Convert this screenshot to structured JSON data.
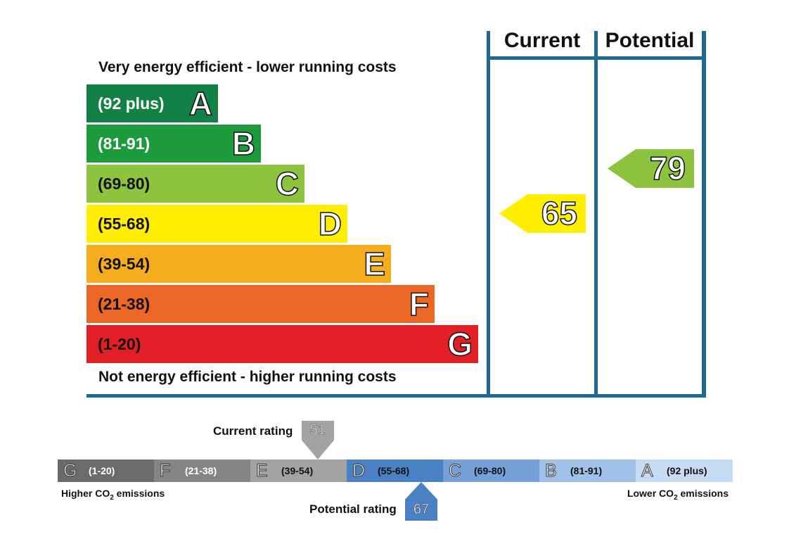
{
  "energy": {
    "top_caption": "Very energy efficient - lower running costs",
    "bottom_caption": "Not energy efficient - higher running costs",
    "columns": {
      "current": "Current",
      "potential": "Potential"
    },
    "bands": [
      {
        "range": "(92 plus)",
        "letter": "A",
        "color": "#138045"
      },
      {
        "range": "(81-91)",
        "letter": "B",
        "color": "#1d9a3c"
      },
      {
        "range": "(69-80)",
        "letter": "C",
        "color": "#8cc43f"
      },
      {
        "range": "(55-68)",
        "letter": "D",
        "color": "#ffee00"
      },
      {
        "range": "(39-54)",
        "letter": "E",
        "color": "#f6ad1d"
      },
      {
        "range": "(21-38)",
        "letter": "F",
        "color": "#ec6725"
      },
      {
        "range": "(1-20)",
        "letter": "G",
        "color": "#e21f26"
      }
    ],
    "current": {
      "value": "65",
      "band": "D",
      "color": "#ffee00"
    },
    "potential": {
      "value": "79",
      "band": "C",
      "color": "#8cc43f"
    },
    "frame_color": "#1f6b8e"
  },
  "co2": {
    "segments": [
      {
        "letter": "G",
        "range": "(1-20)",
        "color": "#6b6b6b"
      },
      {
        "letter": "F",
        "range": "(21-38)",
        "color": "#858585"
      },
      {
        "letter": "E",
        "range": "(39-54)",
        "color": "#a3a3a3"
      },
      {
        "letter": "D",
        "range": "(55-68)",
        "color": "#4a80c4"
      },
      {
        "letter": "C",
        "range": "(69-80)",
        "color": "#75a1d8"
      },
      {
        "letter": "B",
        "range": "(81-91)",
        "color": "#9fc0e8"
      },
      {
        "letter": "A",
        "range": "(92 plus)",
        "color": "#c7dcf3"
      }
    ],
    "left_caption_pre": "Higher CO",
    "left_caption_sub": "2",
    "left_caption_post": " emissions",
    "right_caption_pre": "Lower CO",
    "right_caption_sub": "2",
    "right_caption_post": " emissions",
    "current": {
      "label": "Current rating",
      "value": "51",
      "band": "E",
      "color": "#a3a3a3"
    },
    "potential": {
      "label": "Potential rating",
      "value": "67",
      "band": "D",
      "color": "#4a80c4"
    }
  }
}
